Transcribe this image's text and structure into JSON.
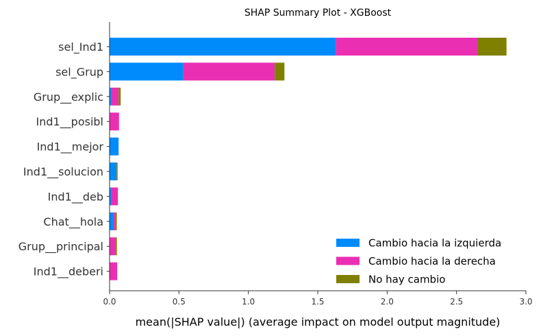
{
  "chart_data": {
    "type": "bar",
    "orientation": "horizontal",
    "stacked": true,
    "title": "SHAP Summary Plot - XGBoost",
    "xlabel": "mean(|SHAP value|) (average impact on model output magnitude)",
    "xlim": [
      0,
      3.0
    ],
    "xticks": [
      "0.0",
      "0.5",
      "1.0",
      "1.5",
      "2.0",
      "2.5",
      "3.0"
    ],
    "xtick_values": [
      0,
      0.5,
      1.0,
      1.5,
      2.0,
      2.5,
      3.0
    ],
    "legend_position": "bottom-right",
    "grid": false,
    "categories": [
      "sel_Ind1",
      "sel_Grup",
      "Grup__explic",
      "Ind1__posibl",
      "Ind1__mejor",
      "Ind1__solucion",
      "Ind1__deb",
      "Chat__hola",
      "Grup__principal",
      "Ind1__deberi"
    ],
    "series": [
      {
        "name": "Cambio hacia la izquierda",
        "color": "#008bfb",
        "values": [
          1.63,
          0.53,
          0.01,
          0.0,
          0.065,
          0.05,
          0.01,
          0.03,
          0.0,
          0.0
        ]
      },
      {
        "name": "Cambio hacia la derecha",
        "color": "#ea2fb2",
        "values": [
          1.02,
          0.66,
          0.055,
          0.068,
          0.0,
          0.0,
          0.05,
          0.01,
          0.045,
          0.055
        ]
      },
      {
        "name": "No hay cambio",
        "color": "#808000",
        "values": [
          0.21,
          0.07,
          0.015,
          0.0,
          0.0,
          0.008,
          0.0,
          0.012,
          0.008,
          0.0
        ]
      }
    ]
  }
}
